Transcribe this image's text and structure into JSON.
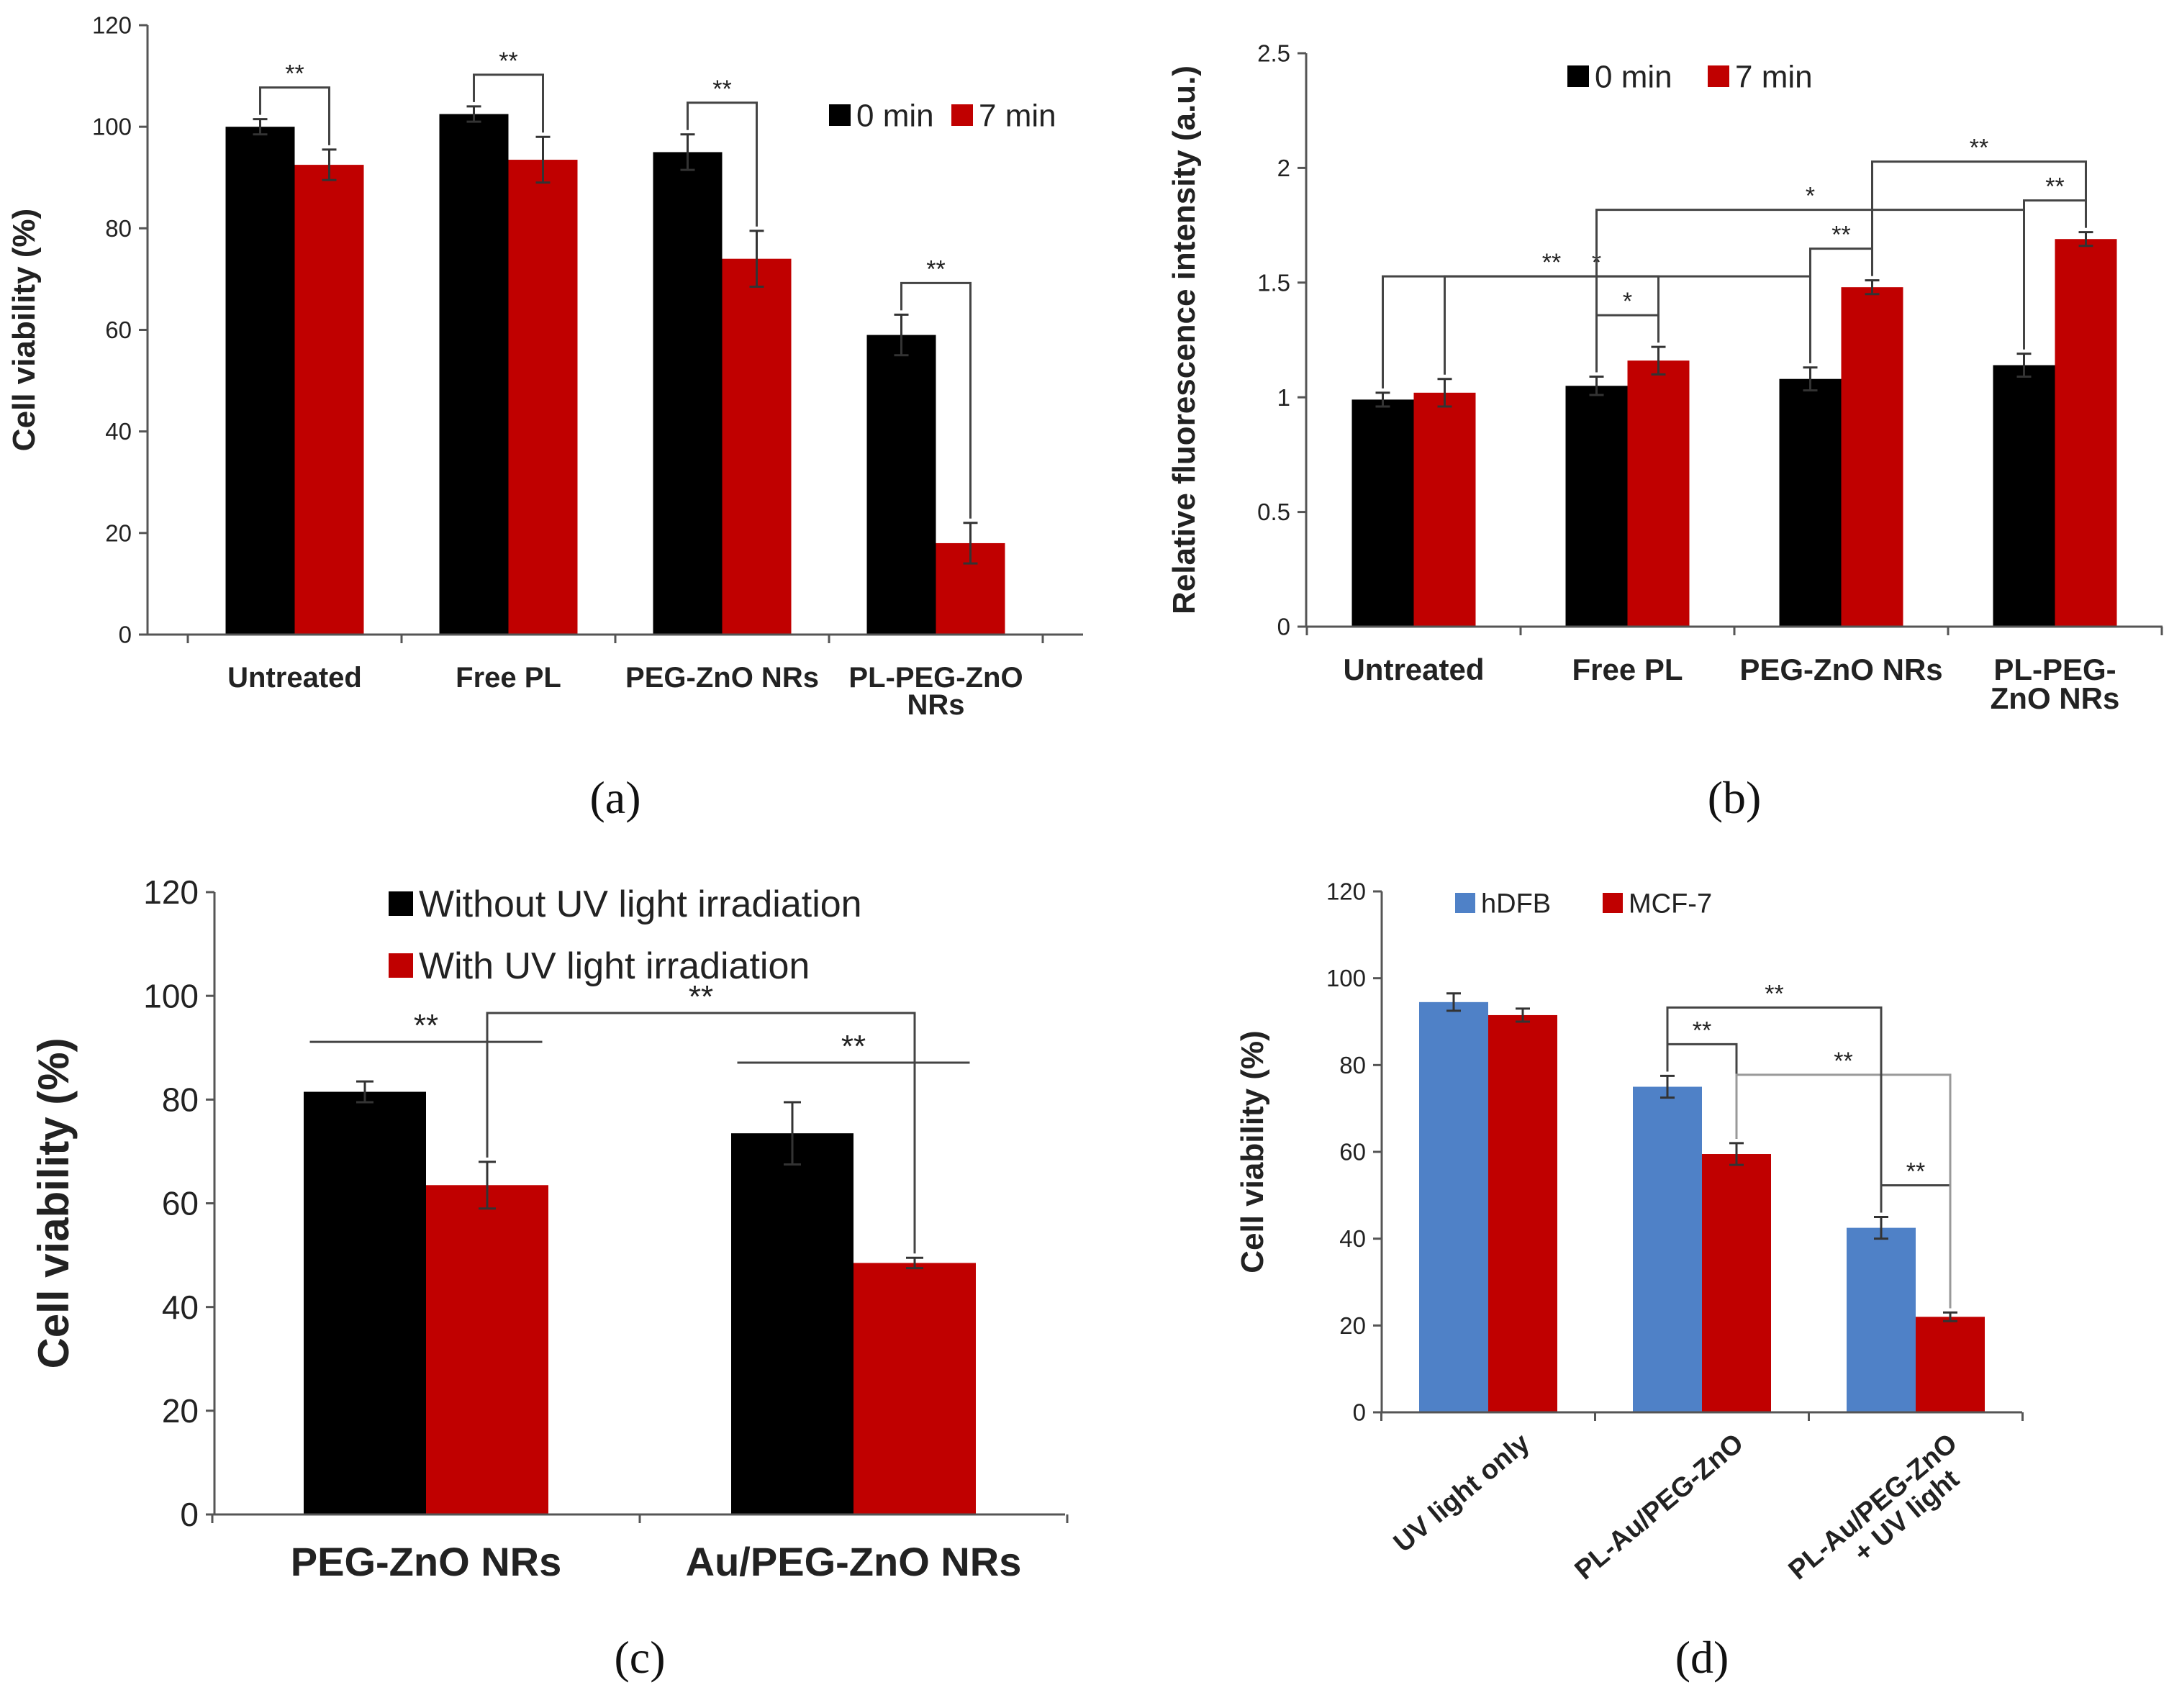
{
  "chart_data": [
    {
      "type": "bar",
      "panel_label": "(a)",
      "categories": [
        [
          "Untreated"
        ],
        [
          "Free PL"
        ],
        [
          "PEG-ZnO NRs"
        ],
        [
          "PL-PEG-ZnO",
          "NRs"
        ]
      ],
      "series": [
        {
          "name": "0 min",
          "color": "#000000",
          "values": [
            100,
            102.5,
            95,
            59
          ],
          "errors": [
            1.5,
            1.5,
            3.5,
            4
          ]
        },
        {
          "name": "7 min",
          "color": "#c00000",
          "values": [
            92.5,
            93.5,
            74,
            18
          ],
          "errors": [
            3,
            4.5,
            5.5,
            4
          ]
        }
      ],
      "ylabel": "Cell viability (%)",
      "ylim": [
        0,
        120
      ],
      "yticks": [
        "0",
        "20",
        "40",
        "60",
        "80",
        "100",
        "120"
      ],
      "significance": [
        {
          "label": "**",
          "from": [
            0,
            0
          ],
          "to": [
            0,
            1
          ]
        },
        {
          "label": "**",
          "from": [
            1,
            0
          ],
          "to": [
            1,
            1
          ]
        },
        {
          "label": "**",
          "from": [
            2,
            0
          ],
          "to": [
            2,
            1
          ]
        },
        {
          "label": "**",
          "from": [
            3,
            0
          ],
          "to": [
            3,
            1
          ]
        }
      ]
    },
    {
      "type": "bar",
      "panel_label": "(b)",
      "categories": [
        [
          "Untreated"
        ],
        [
          "Free PL"
        ],
        [
          "PEG-ZnO NRs"
        ],
        [
          "PL-PEG-",
          "ZnO NRs"
        ]
      ],
      "series": [
        {
          "name": "0 min",
          "color": "#000000",
          "values": [
            0.99,
            1.05,
            1.08,
            1.14
          ],
          "errors": [
            0.03,
            0.04,
            0.05,
            0.05
          ]
        },
        {
          "name": "7 min",
          "color": "#c00000",
          "values": [
            1.02,
            1.16,
            1.48,
            1.69
          ],
          "errors": [
            0.06,
            0.06,
            0.03,
            0.03
          ]
        }
      ],
      "ylabel": "Relative fluorescence intensity (a.u.)",
      "ylim": [
        0,
        2.5
      ],
      "yticks": [
        "0",
        "0.5",
        "1",
        "1.5",
        "2",
        "2.5"
      ],
      "significance": [
        {
          "label": "*",
          "from": [
            1,
            0
          ],
          "to": [
            1,
            1
          ]
        },
        {
          "label": "**",
          "from": [
            0,
            1
          ],
          "to": [
            1,
            1
          ]
        },
        {
          "label": "*",
          "from": [
            0,
            0
          ],
          "to": [
            2,
            0
          ]
        },
        {
          "label": "**",
          "from": [
            2,
            0
          ],
          "to": [
            2,
            1
          ]
        },
        {
          "label": "*",
          "from": [
            1,
            0
          ],
          "to": [
            3,
            0
          ]
        },
        {
          "label": "**",
          "from": [
            3,
            0
          ],
          "to": [
            3,
            1
          ]
        },
        {
          "label": "**",
          "from": [
            2,
            1
          ],
          "to": [
            3,
            1
          ]
        }
      ]
    },
    {
      "type": "bar",
      "panel_label": "(c)",
      "categories": [
        [
          "PEG-ZnO NRs"
        ],
        [
          "Au/PEG-ZnO NRs"
        ]
      ],
      "series": [
        {
          "name": "Without UV light irradiation",
          "color": "#000000",
          "values": [
            81.5,
            73.5
          ],
          "errors": [
            2,
            6
          ]
        },
        {
          "name": "With UV light irradiation",
          "color": "#c00000",
          "values": [
            63.5,
            48.5
          ],
          "errors": [
            4.5,
            1
          ]
        }
      ],
      "ylabel": "Cell viability (%)",
      "ylim": [
        0,
        120
      ],
      "yticks": [
        "0",
        "20",
        "40",
        "60",
        "80",
        "100",
        "120"
      ],
      "significance": [
        {
          "label": "**",
          "from": [
            0,
            0
          ],
          "to": [
            0,
            1
          ],
          "style": "flat"
        },
        {
          "label": "**",
          "from": [
            1,
            0
          ],
          "to": [
            1,
            1
          ],
          "style": "flat"
        },
        {
          "label": "**",
          "from": [
            0,
            1
          ],
          "to": [
            1,
            1
          ]
        }
      ]
    },
    {
      "type": "bar",
      "panel_label": "(d)",
      "categories": [
        [
          "UV light only"
        ],
        [
          "PL-Au/PEG-ZnO"
        ],
        [
          "PL-Au/PEG-ZnO",
          "+ UV light"
        ]
      ],
      "series": [
        {
          "name": "hDFB",
          "color": "#4f81c7",
          "values": [
            94.5,
            75,
            42.5
          ],
          "errors": [
            2,
            2.5,
            2.5
          ]
        },
        {
          "name": "MCF-7",
          "color": "#c00000",
          "values": [
            91.5,
            59.5,
            22
          ],
          "errors": [
            1.5,
            2.5,
            1
          ]
        }
      ],
      "ylabel": "Cell viability (%)",
      "ylim": [
        0,
        120
      ],
      "yticks": [
        "0",
        "20",
        "40",
        "60",
        "80",
        "100",
        "120"
      ],
      "significance": [
        {
          "label": "**",
          "from": [
            1,
            0
          ],
          "to": [
            1,
            1
          ]
        },
        {
          "label": "**",
          "from": [
            2,
            0
          ],
          "to": [
            2,
            1
          ]
        },
        {
          "label": "**",
          "from": [
            1,
            1
          ],
          "to": [
            2,
            1
          ],
          "style": "light"
        },
        {
          "label": "**",
          "from": [
            1,
            0
          ],
          "to": [
            2,
            0
          ]
        }
      ]
    }
  ]
}
